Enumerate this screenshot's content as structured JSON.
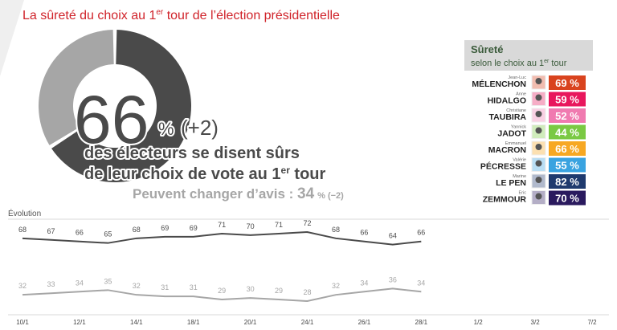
{
  "title": {
    "pre": "La sûreté du choix au 1",
    "sup": "er",
    "post": " tour de l’élection présidentielle"
  },
  "headline": {
    "sure_value": 66,
    "sure_unit": "%",
    "sure_delta": "(+2)",
    "line1": "des électeurs se disent sûrs",
    "line2_pre": "de leur choix de vote au 1",
    "line2_sup": "er",
    "line2_post": " tour",
    "change_label": "Peuvent changer d’avis : ",
    "change_value": 34,
    "change_unit": "%",
    "change_delta": "(−2)"
  },
  "panel": {
    "title": "Sûreté",
    "subtitle_pre": "selon le choix au 1",
    "subtitle_sup": "er",
    "subtitle_post": " tour",
    "rows": [
      {
        "first": "Jean-Luc",
        "last": "MÉLENCHON",
        "value": 69,
        "value_label": "69 %",
        "color": "#d9431e"
      },
      {
        "first": "Anne",
        "last": "HIDALGO",
        "value": 59,
        "value_label": "59 %",
        "color": "#e8175d"
      },
      {
        "first": "Christiane",
        "last": "TAUBIRA",
        "value": 52,
        "value_label": "52 %",
        "color": "#f07ab0"
      },
      {
        "first": "Yannick",
        "last": "JADOT",
        "value": 44,
        "value_label": "44 %",
        "color": "#7ac943"
      },
      {
        "first": "Emmanuel",
        "last": "MACRON",
        "value": 66,
        "value_label": "66 %",
        "color": "#f7a823"
      },
      {
        "first": "Valérie",
        "last": "PÉCRESSE",
        "value": 55,
        "value_label": "55 %",
        "color": "#3aa3e0"
      },
      {
        "first": "Marine",
        "last": "LE PEN",
        "value": 82,
        "value_label": "82 %",
        "color": "#1f3a6e"
      },
      {
        "first": "Eric",
        "last": "ZEMMOUR",
        "value": 70,
        "value_label": "70 %",
        "color": "#2a1a5e"
      }
    ]
  },
  "chart_data": {
    "type": "line",
    "title": "Évolution",
    "categories": [
      "10/1",
      null,
      "12/1",
      null,
      "14/1",
      null,
      "18/1",
      null,
      "20/1",
      null,
      "24/1",
      null,
      "26/1",
      null,
      "28/1",
      null,
      "1/2",
      null,
      "3/2",
      null,
      "7/2"
    ],
    "series": [
      {
        "color": "#4a4a4a",
        "values": [
          68,
          67,
          66,
          65,
          68,
          69,
          69,
          71,
          70,
          71,
          72,
          68,
          66,
          64,
          66,
          null,
          null,
          null,
          null,
          null,
          null
        ]
      },
      {
        "color": "#a6a6a6",
        "values": [
          32,
          33,
          34,
          35,
          32,
          31,
          31,
          29,
          30,
          29,
          28,
          32,
          34,
          36,
          34,
          null,
          null,
          null,
          null,
          null,
          null
        ]
      }
    ]
  }
}
